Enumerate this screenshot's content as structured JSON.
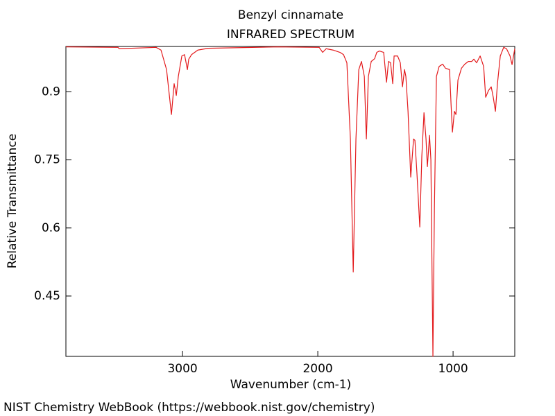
{
  "chart_data": {
    "type": "line",
    "title": "Benzyl cinnamate",
    "subtitle": "INFRARED SPECTRUM",
    "xlabel": "Wavenumber (cm-1)",
    "ylabel": "Relative Transmittance",
    "source": "NIST Chemistry WebBook (https://webbook.nist.gov/chemistry)",
    "color": "#e31a1c",
    "xlim": [
      3862,
      544
    ],
    "ylim": [
      0.317,
      1.0
    ],
    "xticks": [
      3000,
      2000,
      1000
    ],
    "yticks": [
      0.9,
      0.75,
      0.6,
      0.45
    ],
    "x": [
      3862,
      3477,
      3467,
      3195,
      3159,
      3118,
      3082,
      3062,
      3046,
      3031,
      3005,
      2985,
      2964,
      2954,
      2933,
      2887,
      2810,
      2297,
      1990,
      1964,
      1938,
      1887,
      1836,
      1810,
      1785,
      1759,
      1738,
      1718,
      1697,
      1677,
      1656,
      1641,
      1626,
      1605,
      1580,
      1564,
      1544,
      1513,
      1492,
      1477,
      1462,
      1446,
      1436,
      1410,
      1390,
      1374,
      1359,
      1349,
      1333,
      1313,
      1292,
      1282,
      1267,
      1246,
      1231,
      1215,
      1200,
      1190,
      1174,
      1164,
      1149,
      1138,
      1123,
      1103,
      1077,
      1056,
      1026,
      1015,
      1005,
      990,
      979,
      964,
      938,
      913,
      887,
      862,
      846,
      826,
      800,
      774,
      759,
      738,
      718,
      703,
      687,
      672,
      651,
      626,
      605,
      579,
      564,
      544
    ],
    "values": [
      0.999,
      0.998,
      0.995,
      0.998,
      0.992,
      0.949,
      0.85,
      0.918,
      0.892,
      0.934,
      0.979,
      0.982,
      0.949,
      0.972,
      0.982,
      0.992,
      0.996,
      0.999,
      0.998,
      0.987,
      0.995,
      0.992,
      0.987,
      0.982,
      0.964,
      0.796,
      0.503,
      0.796,
      0.949,
      0.967,
      0.934,
      0.796,
      0.934,
      0.967,
      0.973,
      0.987,
      0.99,
      0.987,
      0.921,
      0.967,
      0.964,
      0.918,
      0.979,
      0.979,
      0.964,
      0.911,
      0.949,
      0.934,
      0.857,
      0.712,
      0.796,
      0.793,
      0.72,
      0.602,
      0.758,
      0.854,
      0.796,
      0.735,
      0.804,
      0.75,
      0.317,
      0.644,
      0.934,
      0.956,
      0.961,
      0.952,
      0.949,
      0.873,
      0.811,
      0.857,
      0.85,
      0.926,
      0.952,
      0.961,
      0.967,
      0.967,
      0.972,
      0.964,
      0.979,
      0.956,
      0.888,
      0.903,
      0.911,
      0.888,
      0.857,
      0.918,
      0.979,
      0.998,
      0.995,
      0.979,
      0.96,
      0.995
    ]
  }
}
